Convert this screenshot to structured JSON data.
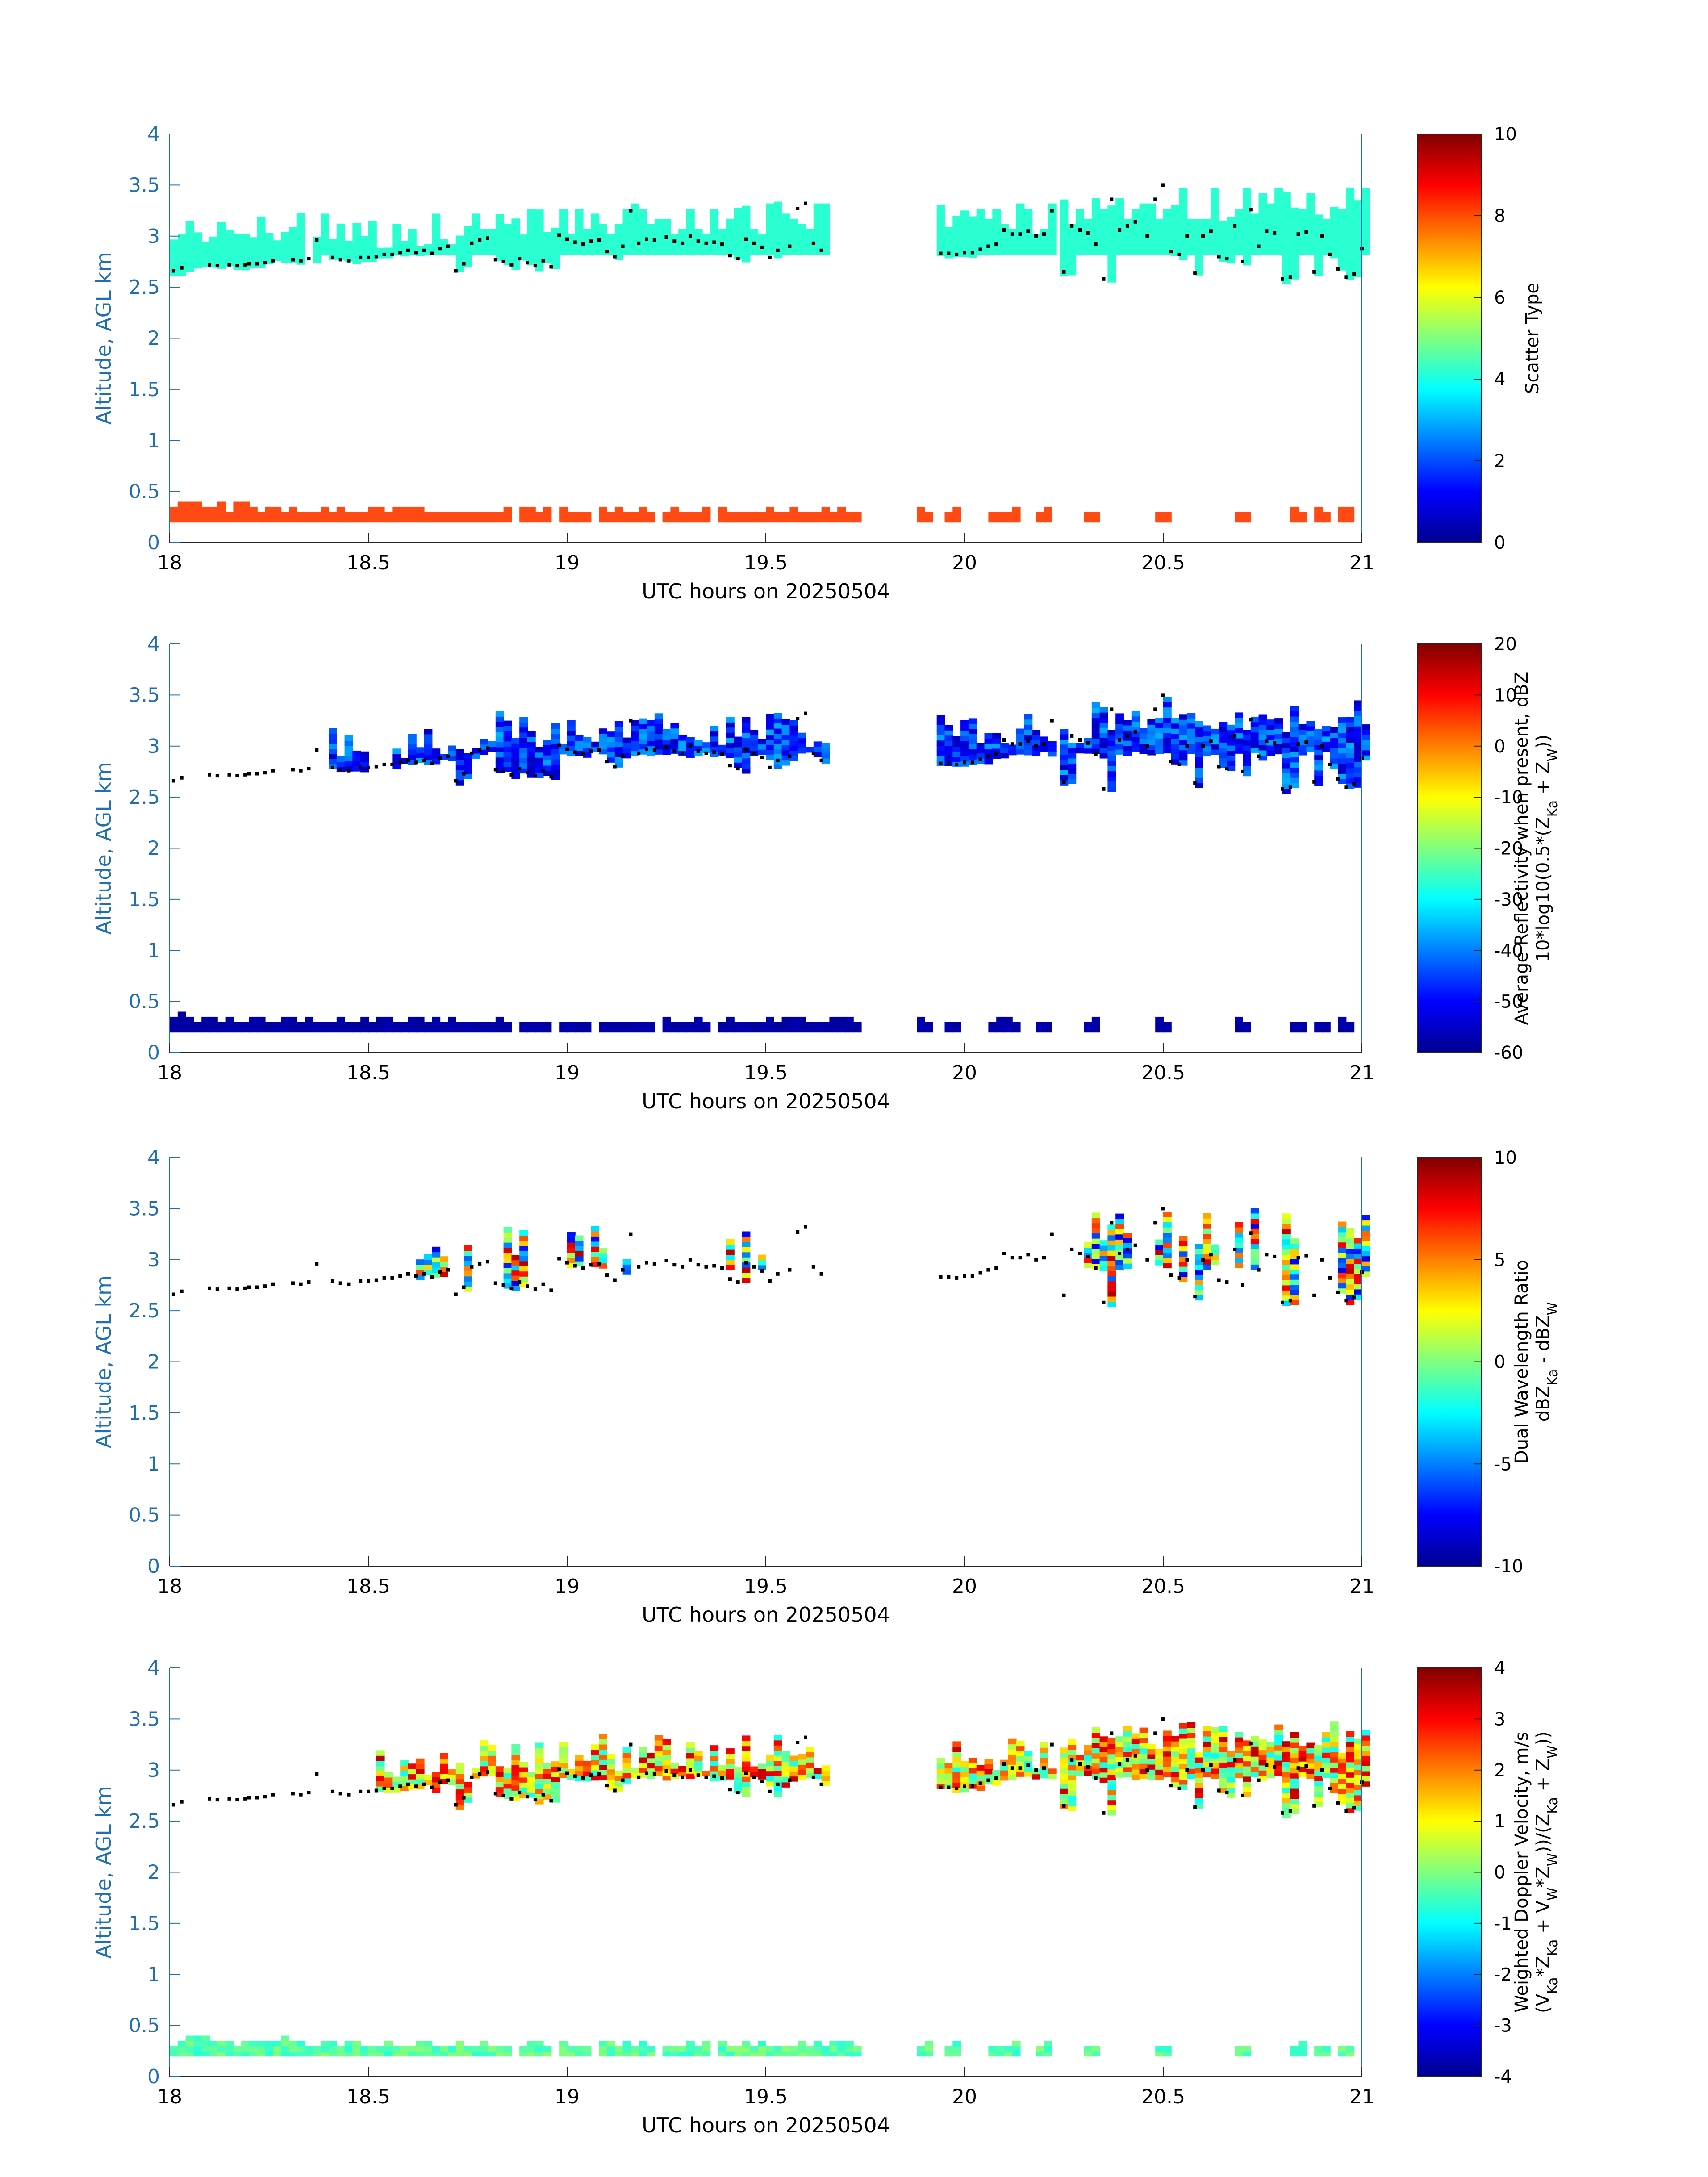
{
  "chart_data": [
    {
      "type": "heatmap",
      "xlabel": "UTC hours on 20250504",
      "ylabel": "Altitude, AGL km",
      "xlim": [
        18,
        21
      ],
      "ylim": [
        0,
        4
      ],
      "xticks": [
        "18",
        "18.5",
        "19",
        "19.5",
        "20",
        "20.5",
        "21"
      ],
      "yticks": [
        "0",
        "0.5",
        "1",
        "1.5",
        "2",
        "2.5",
        "3",
        "3.5",
        "4"
      ],
      "colorbar": {
        "label_lines": [
          "Scatter Type"
        ],
        "range": [
          0,
          10
        ],
        "ticks": [
          "0",
          "2",
          "4",
          "6",
          "8",
          "10"
        ]
      },
      "cloud_layer": {
        "value": 4.1,
        "color": "#2affd2"
      },
      "surface_layer": {
        "value": 8.5,
        "color": "#ff4a14"
      },
      "show_cloud_base_dots": true
    },
    {
      "type": "heatmap",
      "xlabel": "UTC hours on 20250504",
      "ylabel": "Altitude, AGL km",
      "xlim": [
        18,
        21
      ],
      "ylim": [
        0,
        4
      ],
      "xticks": [
        "18",
        "18.5",
        "19",
        "19.5",
        "20",
        "20.5",
        "21"
      ],
      "yticks": [
        "0",
        "0.5",
        "1",
        "1.5",
        "2",
        "2.5",
        "3",
        "3.5",
        "4"
      ],
      "colorbar": {
        "label_lines": [
          "Average Reflectivity when present, dBZ",
          "10*log10(0.5*(Z_Ka + Z_W))"
        ],
        "range": [
          -60,
          20
        ],
        "ticks": [
          "-60",
          "-50",
          "-40",
          "-30",
          "-20",
          "-10",
          "0",
          "10",
          "20"
        ]
      },
      "cloud_layer": {
        "value_range": [
          -56,
          -36
        ]
      },
      "surface_layer": {
        "value": -58
      },
      "show_cloud_base_dots": true
    },
    {
      "type": "heatmap",
      "xlabel": "UTC hours on 20250504",
      "ylabel": "Altitude, AGL km",
      "xlim": [
        18,
        21
      ],
      "ylim": [
        0,
        4
      ],
      "xticks": [
        "18",
        "18.5",
        "19",
        "19.5",
        "20",
        "20.5",
        "21"
      ],
      "yticks": [
        "0",
        "0.5",
        "1",
        "1.5",
        "2",
        "2.5",
        "3",
        "3.5",
        "4"
      ],
      "colorbar": {
        "label_lines": [
          "Dual Wavelength Ratio",
          "dBZ_Ka - dBZ_W"
        ],
        "range": [
          -10,
          10
        ],
        "ticks": [
          "-10",
          "-5",
          "0",
          "5",
          "10"
        ]
      },
      "cloud_layer": {
        "value_range": [
          -8,
          9
        ]
      },
      "show_cloud_base_dots": true
    },
    {
      "type": "heatmap",
      "xlabel": "UTC hours on 20250504",
      "ylabel": "Altitude, AGL km",
      "xlim": [
        18,
        21
      ],
      "ylim": [
        0,
        4
      ],
      "xticks": [
        "18",
        "18.5",
        "19",
        "19.5",
        "20",
        "20.5",
        "21"
      ],
      "yticks": [
        "0",
        "0.5",
        "1",
        "1.5",
        "2",
        "2.5",
        "3",
        "3.5",
        "4"
      ],
      "colorbar": {
        "label_lines": [
          "Weighted Doppler Velocity, m/s",
          "(V_Ka*Z_Ka + V_W*Z_W))/(Z_Ka + Z_W))"
        ],
        "range": [
          -4,
          4
        ],
        "ticks": [
          "-4",
          "-3",
          "-2",
          "-1",
          "0",
          "1",
          "2",
          "3",
          "4"
        ]
      },
      "cloud_layer": {
        "value_range": [
          -1,
          3.5
        ]
      },
      "surface_layer": {
        "value": -0.3
      },
      "show_cloud_base_dots": true
    }
  ],
  "cloud_base_dots": [
    [
      18.01,
      2.66
    ],
    [
      18.03,
      2.69
    ],
    [
      18.1,
      2.72
    ],
    [
      18.12,
      2.71
    ],
    [
      18.15,
      2.72
    ],
    [
      18.17,
      2.71
    ],
    [
      18.19,
      2.72
    ],
    [
      18.2,
      2.73
    ],
    [
      18.22,
      2.73
    ],
    [
      18.24,
      2.74
    ],
    [
      18.26,
      2.76
    ],
    [
      18.31,
      2.77
    ],
    [
      18.33,
      2.76
    ],
    [
      18.35,
      2.78
    ],
    [
      18.37,
      2.96
    ],
    [
      18.41,
      2.79
    ],
    [
      18.43,
      2.77
    ],
    [
      18.45,
      2.76
    ],
    [
      18.48,
      2.79
    ],
    [
      18.5,
      2.79
    ],
    [
      18.52,
      2.8
    ],
    [
      18.54,
      2.82
    ],
    [
      18.56,
      2.82
    ],
    [
      18.58,
      2.84
    ],
    [
      18.6,
      2.86
    ],
    [
      18.62,
      2.84
    ],
    [
      18.64,
      2.86
    ],
    [
      18.66,
      2.83
    ],
    [
      18.68,
      2.88
    ],
    [
      18.7,
      2.9
    ],
    [
      18.72,
      2.66
    ],
    [
      18.74,
      2.73
    ],
    [
      18.76,
      2.93
    ],
    [
      18.78,
      2.96
    ],
    [
      18.8,
      2.98
    ],
    [
      18.82,
      2.77
    ],
    [
      18.84,
      2.75
    ],
    [
      18.86,
      2.72
    ],
    [
      18.88,
      2.78
    ],
    [
      18.9,
      2.74
    ],
    [
      18.92,
      2.71
    ],
    [
      18.94,
      2.76
    ],
    [
      18.96,
      2.7
    ],
    [
      18.98,
      3.01
    ],
    [
      19.0,
      2.97
    ],
    [
      19.02,
      2.94
    ],
    [
      19.04,
      2.92
    ],
    [
      19.06,
      2.95
    ],
    [
      19.08,
      2.96
    ],
    [
      19.1,
      2.85
    ],
    [
      19.12,
      2.8
    ],
    [
      19.14,
      2.9
    ],
    [
      19.16,
      3.25
    ],
    [
      19.18,
      2.93
    ],
    [
      19.2,
      2.97
    ],
    [
      19.22,
      2.96
    ],
    [
      19.25,
      2.99
    ],
    [
      19.27,
      2.95
    ],
    [
      19.29,
      2.93
    ],
    [
      19.31,
      3.0
    ],
    [
      19.33,
      2.95
    ],
    [
      19.35,
      2.93
    ],
    [
      19.37,
      2.94
    ],
    [
      19.39,
      2.92
    ],
    [
      19.41,
      2.81
    ],
    [
      19.43,
      2.78
    ],
    [
      19.45,
      2.97
    ],
    [
      19.47,
      2.93
    ],
    [
      19.49,
      2.89
    ],
    [
      19.51,
      2.79
    ],
    [
      19.53,
      2.86
    ],
    [
      19.56,
      2.9
    ],
    [
      19.58,
      3.27
    ],
    [
      19.6,
      3.32
    ],
    [
      19.62,
      2.93
    ],
    [
      19.64,
      2.86
    ],
    [
      19.94,
      2.83
    ],
    [
      19.96,
      2.83
    ],
    [
      19.98,
      2.82
    ],
    [
      20.0,
      2.84
    ],
    [
      20.02,
      2.84
    ],
    [
      20.04,
      2.87
    ],
    [
      20.06,
      2.9
    ],
    [
      20.08,
      2.92
    ],
    [
      20.1,
      3.06
    ],
    [
      20.12,
      3.02
    ],
    [
      20.14,
      3.02
    ],
    [
      20.16,
      3.05
    ],
    [
      20.18,
      3.0
    ],
    [
      20.2,
      3.02
    ],
    [
      20.22,
      3.25
    ],
    [
      20.25,
      2.65
    ],
    [
      20.27,
      3.1
    ],
    [
      20.29,
      3.06
    ],
    [
      20.31,
      3.03
    ],
    [
      20.33,
      2.92
    ],
    [
      20.35,
      2.58
    ],
    [
      20.37,
      3.36
    ],
    [
      20.39,
      3.06
    ],
    [
      20.41,
      3.1
    ],
    [
      20.43,
      3.14
    ],
    [
      20.46,
      3.0
    ],
    [
      20.48,
      3.36
    ],
    [
      20.5,
      3.5
    ],
    [
      20.52,
      2.85
    ],
    [
      20.54,
      2.82
    ],
    [
      20.56,
      3.0
    ],
    [
      20.58,
      2.64
    ],
    [
      20.6,
      3.0
    ],
    [
      20.62,
      3.05
    ],
    [
      20.64,
      2.8
    ],
    [
      20.66,
      2.78
    ],
    [
      20.68,
      3.1
    ],
    [
      20.7,
      2.75
    ],
    [
      20.72,
      3.26
    ],
    [
      20.74,
      2.9
    ],
    [
      20.76,
      3.05
    ],
    [
      20.78,
      3.03
    ],
    [
      20.8,
      2.58
    ],
    [
      20.82,
      2.6
    ],
    [
      20.84,
      3.02
    ],
    [
      20.86,
      3.04
    ],
    [
      20.88,
      2.65
    ],
    [
      20.9,
      3.0
    ],
    [
      20.92,
      2.82
    ],
    [
      20.94,
      2.68
    ],
    [
      20.96,
      2.6
    ],
    [
      20.98,
      2.63
    ],
    [
      21.0,
      2.88
    ]
  ],
  "cloud_segments": [
    [
      18.0,
      18.32
    ],
    [
      18.36,
      18.36
    ],
    [
      18.38,
      19.64
    ],
    [
      19.93,
      20.22
    ],
    [
      20.24,
      21.0
    ]
  ],
  "surface_segments": [
    [
      18.0,
      18.5
    ],
    [
      18.52,
      18.78
    ],
    [
      18.8,
      18.85
    ],
    [
      18.88,
      18.95
    ],
    [
      18.98,
      19.05
    ],
    [
      19.08,
      19.2
    ],
    [
      19.24,
      19.35
    ],
    [
      19.38,
      19.5
    ],
    [
      19.52,
      19.6
    ],
    [
      19.62,
      19.72
    ],
    [
      19.88,
      19.9
    ],
    [
      19.95,
      19.97
    ],
    [
      20.06,
      20.12
    ],
    [
      20.18,
      20.2
    ],
    [
      20.3,
      20.32
    ],
    [
      20.48,
      20.5
    ],
    [
      20.68,
      20.7
    ],
    [
      20.82,
      20.84
    ],
    [
      20.88,
      20.9
    ],
    [
      20.94,
      20.96
    ]
  ],
  "colormap": [
    "#00008f",
    "#0000ff",
    "#0080ff",
    "#00ffff",
    "#80ff80",
    "#ffff00",
    "#ff8000",
    "#ff0000",
    "#800000"
  ]
}
